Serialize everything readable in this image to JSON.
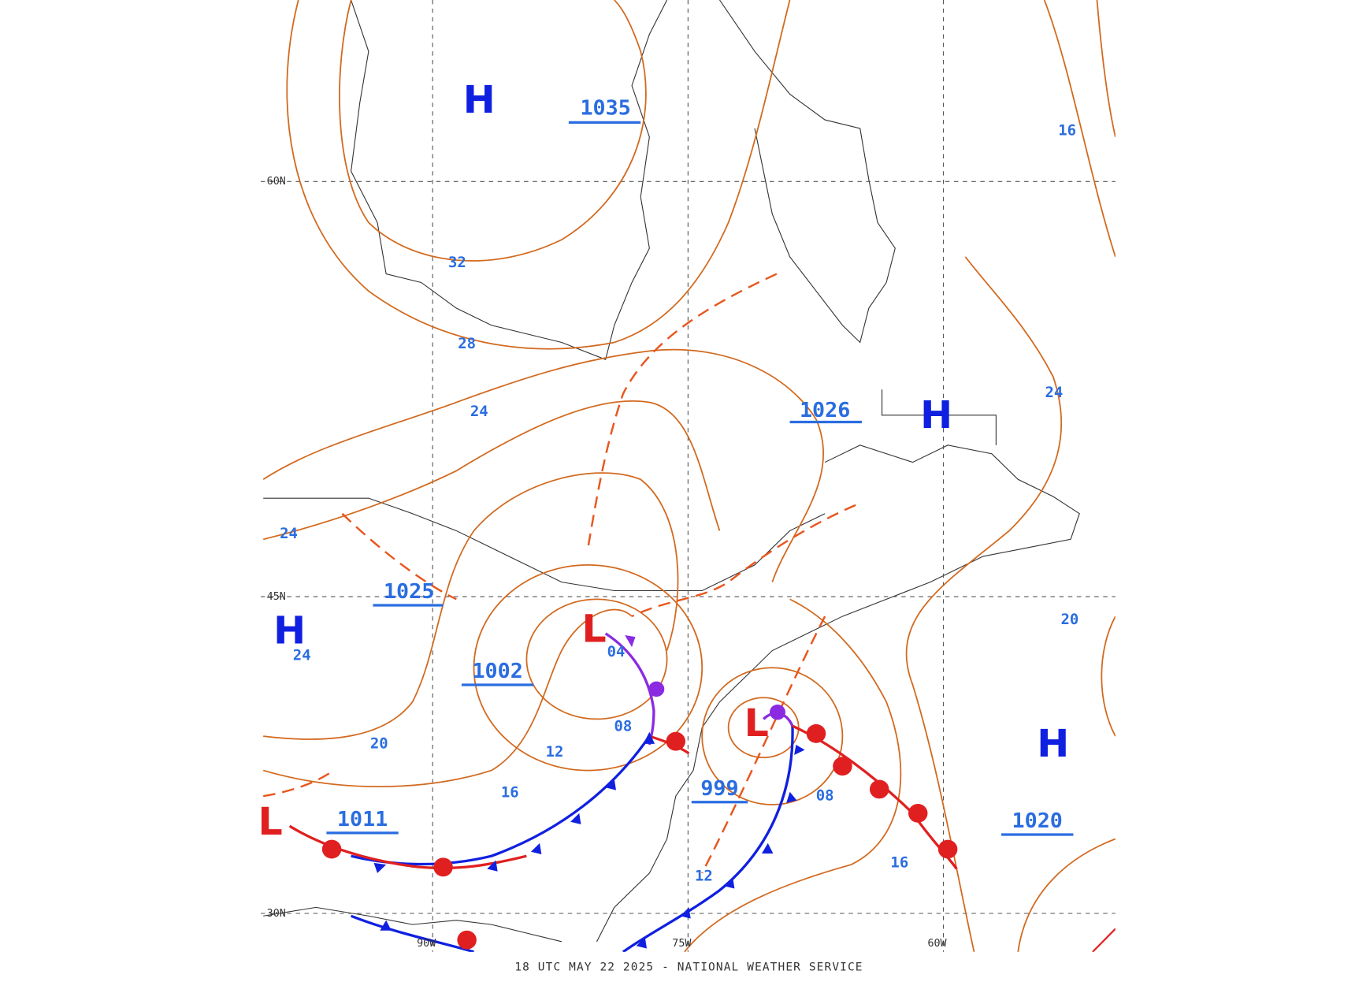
{
  "map": {
    "footer": "18 UTC MAY 22 2025 - NATIONAL WEATHER SERVICE",
    "latitude_labels": [
      "60N",
      "45N",
      "30N"
    ],
    "longitude_labels": [
      "90W",
      "75W",
      "60W"
    ],
    "high_labels": [
      "H",
      "H",
      "H",
      "H"
    ],
    "low_labels": [
      "L",
      "L",
      "L"
    ],
    "central_pressures": [
      "1035",
      "1026",
      "1025",
      "1002",
      "999",
      "1011",
      "1020"
    ],
    "isobar_labels": [
      "32",
      "28",
      "24",
      "24",
      "24",
      "20",
      "16",
      "12",
      "08",
      "04",
      "12",
      "08",
      "16",
      "20",
      "24",
      "16"
    ]
  }
}
